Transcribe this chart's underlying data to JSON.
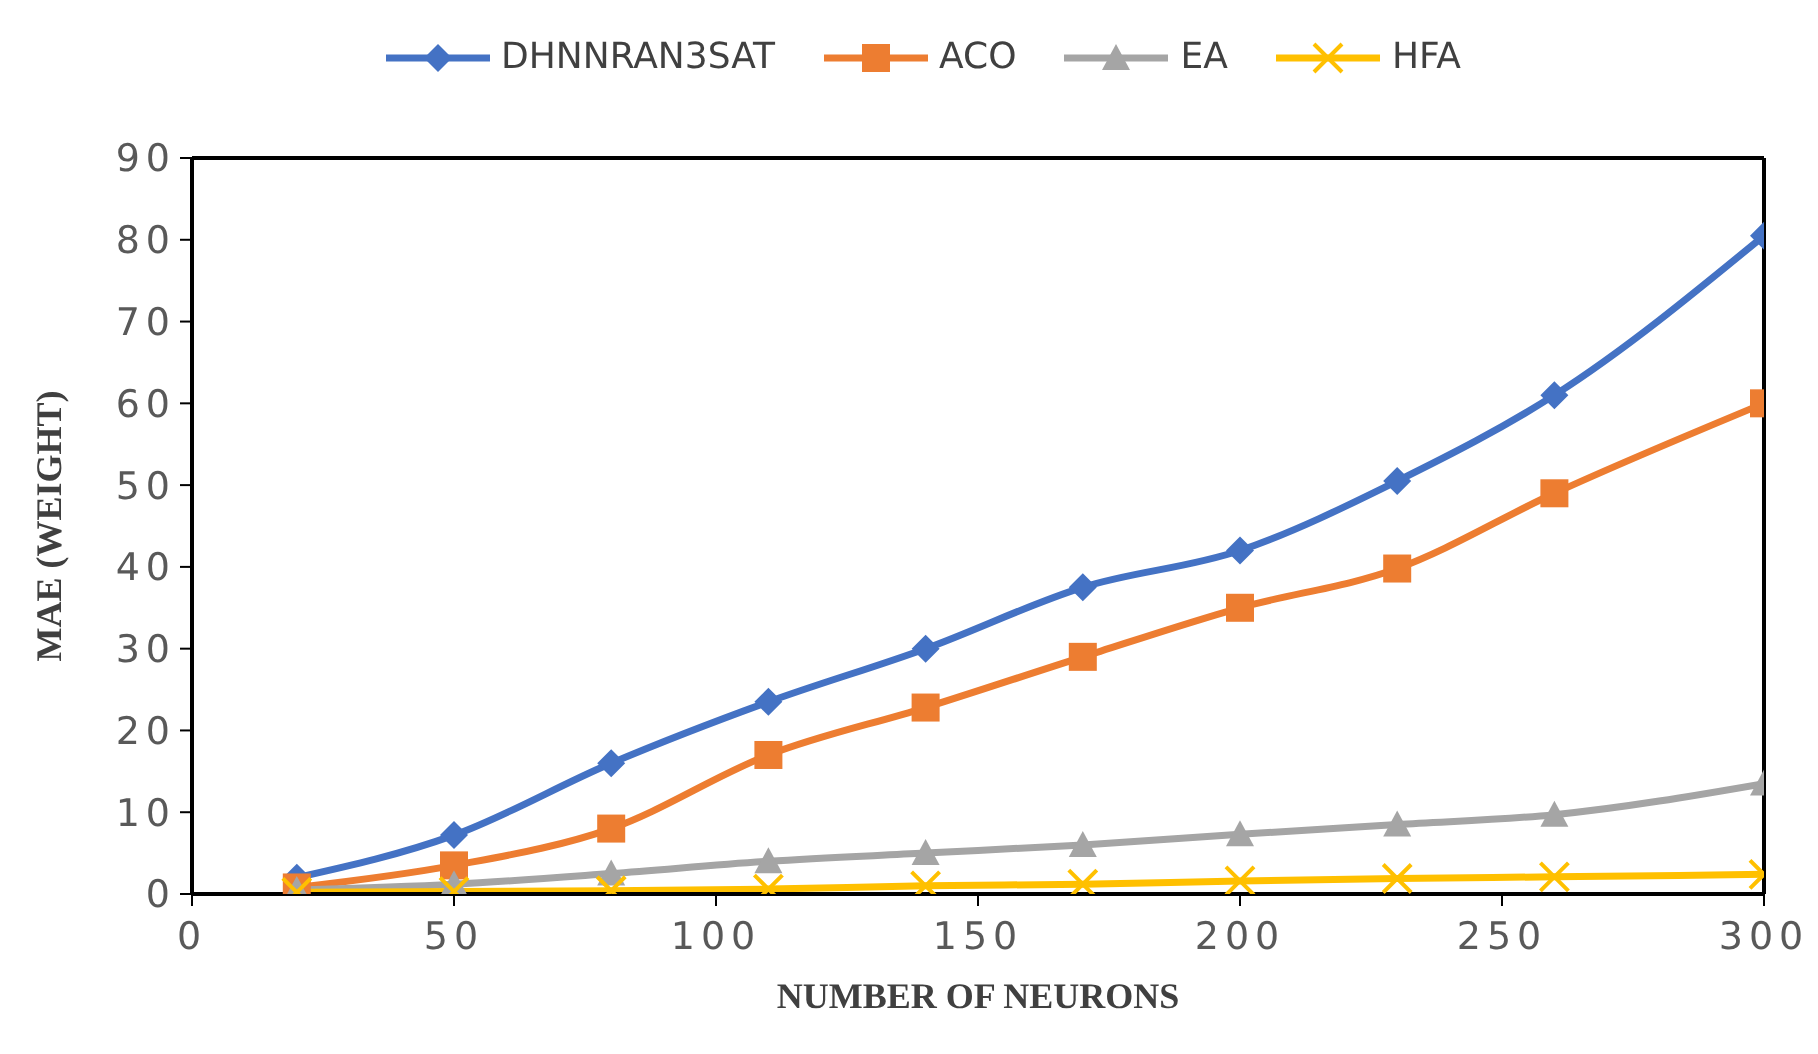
{
  "chart_data": {
    "type": "line",
    "xlabel": "NUMBER OF NEURONS",
    "ylabel": "MAE (WEIGHT)",
    "x": [
      20,
      50,
      80,
      110,
      140,
      170,
      200,
      230,
      260,
      300
    ],
    "xlim": [
      0,
      300
    ],
    "xticks": [
      0,
      50,
      100,
      150,
      200,
      250,
      300
    ],
    "ylim": [
      0,
      90
    ],
    "yticks": [
      0,
      10,
      20,
      30,
      40,
      50,
      60,
      70,
      80,
      90
    ],
    "legend": "top",
    "series": [
      {
        "name": "DHNNRAN3SAT",
        "color": "#4472c4",
        "marker": "diamond",
        "values": [
          2,
          7.2,
          16,
          23.5,
          30,
          37.5,
          42,
          50.5,
          61,
          80.5
        ]
      },
      {
        "name": "ACO",
        "color": "#ed7d31",
        "marker": "square",
        "values": [
          0.8,
          3.5,
          8,
          17,
          22.8,
          29,
          35,
          39.8,
          49,
          60
        ]
      },
      {
        "name": "EA",
        "color": "#a5a5a5",
        "marker": "triangle",
        "values": [
          0.5,
          1.2,
          2.5,
          4,
          5,
          6,
          7.3,
          8.5,
          9.7,
          13.5
        ]
      },
      {
        "name": "HFA",
        "color": "#ffc000",
        "marker": "cross",
        "values": [
          0.2,
          0.3,
          0.4,
          0.6,
          1,
          1.2,
          1.6,
          1.9,
          2.1,
          2.4
        ]
      }
    ]
  }
}
